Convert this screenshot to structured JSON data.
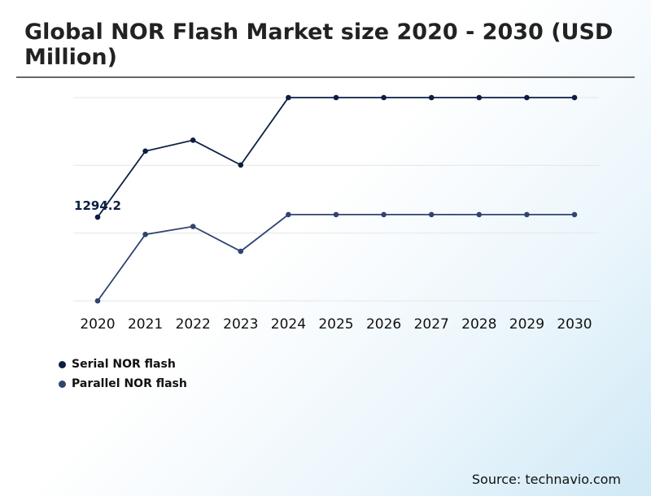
{
  "title": "Global NOR Flash Market size 2020 - 2030 (USD Million)",
  "source": "Source: technavio.com",
  "colors": {
    "serial": "#0c1e42",
    "parallel": "#2f4470",
    "grid": "#e6e6e6"
  },
  "chart_data": {
    "type": "line",
    "x": [
      "2020",
      "2021",
      "2022",
      "2023",
      "2024",
      "2025",
      "2026",
      "2027",
      "2028",
      "2029",
      "2030"
    ],
    "series": [
      {
        "name": "Serial NOR flash",
        "values": [
          1294.2,
          1960,
          2070,
          1820,
          2500,
          2500,
          2500,
          2500,
          2500,
          2500,
          2500
        ]
      },
      {
        "name": "Parallel NOR flash",
        "values": [
          450,
          1120,
          1200,
          950,
          1320,
          1320,
          1320,
          1320,
          1320,
          1320,
          1320
        ]
      }
    ],
    "data_labels": [
      {
        "series": 0,
        "index": 0,
        "text": "1294.2"
      }
    ],
    "gridlines": 4,
    "ylim": [
      0,
      2600
    ],
    "legend_position": "bottom-left"
  }
}
